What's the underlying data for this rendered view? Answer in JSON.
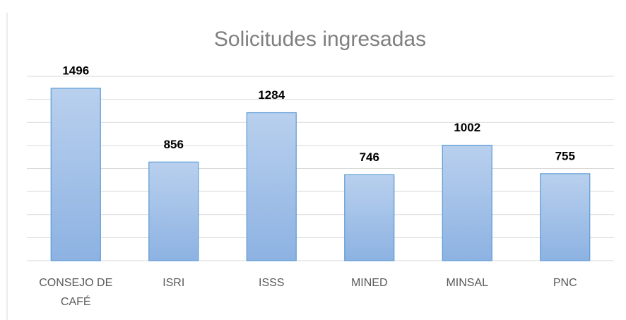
{
  "chart_data": {
    "type": "bar",
    "title": "Solicitudes ingresadas",
    "categories": [
      "CONSEJO DE CAFÉ",
      "ISRI",
      "ISSS",
      "MINED",
      "MINSAL",
      "PNC"
    ],
    "values": [
      1496,
      856,
      1284,
      746,
      1002,
      755
    ],
    "color": "#9dbfe8",
    "ylim": [
      0,
      1600
    ],
    "yticks": [
      0,
      200,
      400,
      600,
      800,
      1000,
      1200,
      1400,
      1600
    ],
    "grid": true
  }
}
